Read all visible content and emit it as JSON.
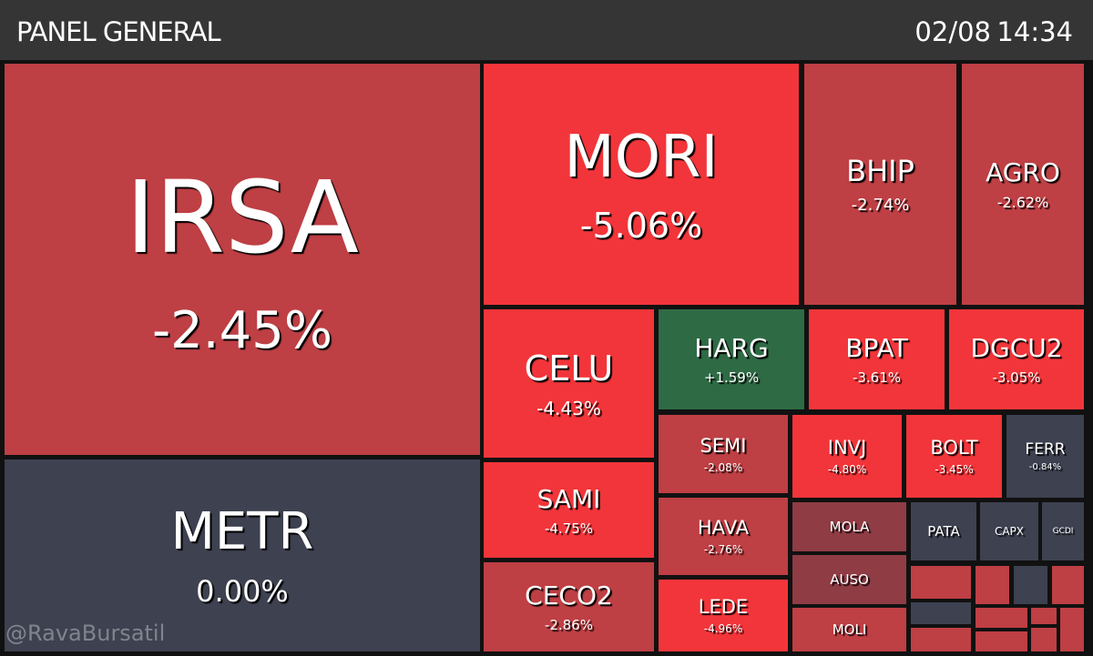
{
  "header": {
    "title": "PANEL GENERAL",
    "date": "02/08",
    "time": "14:34"
  },
  "tiles": [
    {
      "label": "IRSA",
      "change": "-2.45%"
    },
    {
      "label": "METR",
      "change": "0.00%"
    },
    {
      "label": "MORI",
      "change": "-5.06%"
    },
    {
      "label": "BHIP",
      "change": "-2.74%"
    },
    {
      "label": "AGRO",
      "change": "-2.62%"
    },
    {
      "label": "CELU",
      "change": "-4.43%"
    },
    {
      "label": "HARG",
      "change": "+1.59%"
    },
    {
      "label": "BPAT",
      "change": "-3.61%"
    },
    {
      "label": "DGCU2",
      "change": "-3.05%"
    },
    {
      "label": "SAMI",
      "change": "-4.75%"
    },
    {
      "label": "CECO2",
      "change": "-2.86%"
    },
    {
      "label": "SEMI",
      "change": "-2.08%"
    },
    {
      "label": "HAVA",
      "change": "-2.76%"
    },
    {
      "label": "LEDE",
      "change": "-4.96%"
    },
    {
      "label": "INVJ",
      "change": "-4.80%"
    },
    {
      "label": "BOLT",
      "change": "-3.45%"
    },
    {
      "label": "FERR",
      "change": "-0.84%"
    },
    {
      "label": "MOLA"
    },
    {
      "label": "AUSO"
    },
    {
      "label": "MOLI"
    },
    {
      "label": "PATA"
    },
    {
      "label": "CAPX"
    },
    {
      "label": "GCDI"
    }
  ],
  "watermark": "@RavaBursatil"
}
